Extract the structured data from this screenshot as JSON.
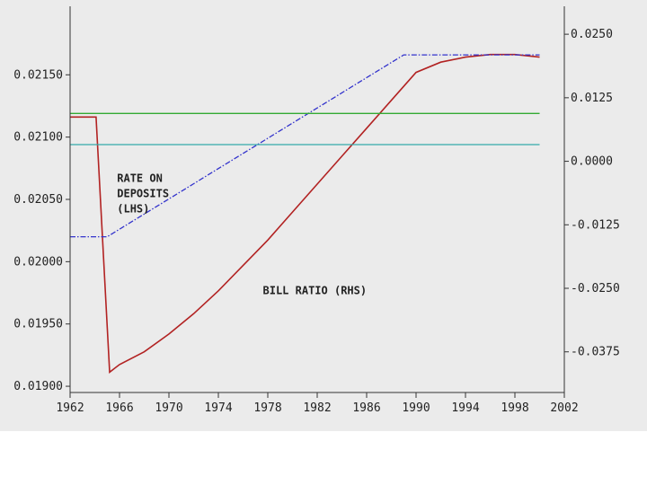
{
  "chart_data": {
    "type": "line",
    "title": "",
    "xlabel": "",
    "ylabel": "",
    "xlim": [
      1962,
      2002
    ],
    "ylim_left": [
      0.01895,
      0.02205
    ],
    "ylim_right": [
      -0.0455,
      0.0305
    ],
    "x_ticks": [
      "1962",
      "1966",
      "1970",
      "1974",
      "1978",
      "1982",
      "1986",
      "1990",
      "1994",
      "1998",
      "2002"
    ],
    "y_left_ticks": [
      "0.01900",
      "0.01950",
      "0.02000",
      "0.02050",
      "0.02100",
      "0.02150"
    ],
    "y_right_ticks": [
      "-0.0375",
      "-0.0250",
      "-0.0125",
      "0.0000",
      "0.0125",
      "0.0250"
    ],
    "grid": false,
    "series": [
      {
        "name": "BILL RATIO (RHS)",
        "axis": "right",
        "color": "#b22222",
        "style": "solid",
        "x": [
          1962,
          1964.1,
          1965.2,
          1966,
          1968,
          1970,
          1972,
          1974,
          1976,
          1978,
          1980,
          1982,
          1984,
          1986,
          1988,
          1990,
          1992,
          1994,
          1996,
          1998,
          2000
        ],
        "values": [
          0.0087,
          0.0087,
          -0.0415,
          -0.04,
          -0.0375,
          -0.034,
          -0.03,
          -0.0255,
          -0.0205,
          -0.0155,
          -0.01,
          -0.0045,
          0.001,
          0.0065,
          0.012,
          0.0175,
          0.0195,
          0.0205,
          0.021,
          0.021,
          0.0205
        ]
      },
      {
        "name": "RATE ON DEPOSITS (LHS)",
        "axis": "left",
        "color": "#3333cc",
        "style": "dashdot",
        "x": [
          1962,
          1965,
          1989,
          2000
        ],
        "values": [
          0.0202,
          0.0202,
          0.02166,
          0.02166
        ]
      },
      {
        "name": "",
        "axis": "left",
        "color": "#33aa33",
        "style": "solid",
        "x": [
          1962,
          2000
        ],
        "values": [
          0.02119,
          0.02119
        ]
      },
      {
        "name": "",
        "axis": "left",
        "color": "#33aaaa",
        "style": "solid",
        "x": [
          1962,
          2000
        ],
        "values": [
          0.02094,
          0.02094
        ]
      }
    ],
    "annotations": [
      {
        "lines": [
          "RATE ON",
          "DEPOSITS",
          "(LHS)"
        ],
        "x": 1965.8,
        "y": 0.02064,
        "axis": "left"
      },
      {
        "lines": [
          "BILL RATIO (RHS)"
        ],
        "x": 1977.6,
        "y": 0.01974,
        "axis": "left"
      }
    ]
  }
}
